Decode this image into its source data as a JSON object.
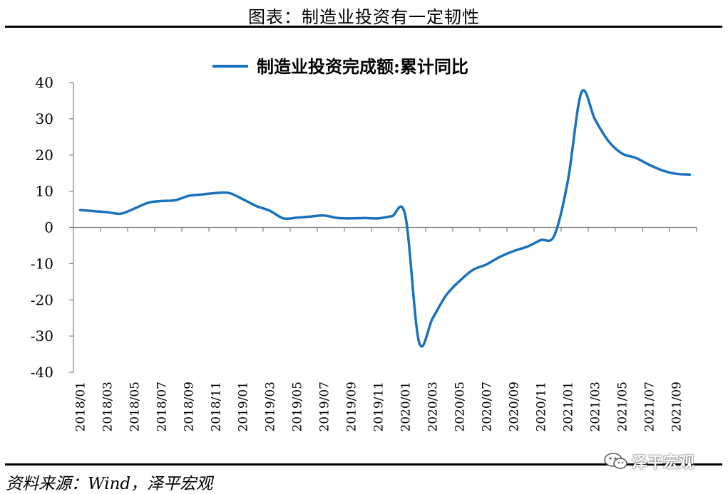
{
  "figure": {
    "title": "图表：制造业投资有一定韧性",
    "source": "资料来源：Wind，泽平宏观",
    "watermark": "泽平宏观",
    "watermark_icon": "wechat-icon"
  },
  "colors": {
    "series": "#1a72bd",
    "axis": "#7f7f7f",
    "text": "#000000"
  },
  "chart_data": {
    "type": "line",
    "title": "",
    "xlabel": "",
    "ylabel": "",
    "ylim": [
      -40,
      40
    ],
    "yticks": [
      40,
      30,
      20,
      10,
      0,
      -10,
      -20,
      -30,
      -40
    ],
    "grid": false,
    "legend": "top",
    "x": [
      "2018/01",
      "2018/02",
      "2018/03",
      "2018/04",
      "2018/05",
      "2018/06",
      "2018/07",
      "2018/08",
      "2018/09",
      "2018/10",
      "2018/11",
      "2018/12",
      "2019/01",
      "2019/02",
      "2019/03",
      "2019/04",
      "2019/05",
      "2019/06",
      "2019/07",
      "2019/08",
      "2019/09",
      "2019/10",
      "2019/11",
      "2019/12",
      "2020/01",
      "2020/02",
      "2020/03",
      "2020/04",
      "2020/05",
      "2020/06",
      "2020/07",
      "2020/08",
      "2020/09",
      "2020/10",
      "2020/11",
      "2020/12",
      "2021/01",
      "2021/02",
      "2021/03",
      "2021/04",
      "2021/05",
      "2021/06",
      "2021/07",
      "2021/08",
      "2021/09",
      "2021/10"
    ],
    "xtick_labels": [
      "2018/01",
      "2018/03",
      "2018/05",
      "2018/07",
      "2018/09",
      "2018/11",
      "2019/01",
      "2019/03",
      "2019/05",
      "2019/07",
      "2019/09",
      "2019/11",
      "2020/01",
      "2020/03",
      "2020/05",
      "2020/07",
      "2020/09",
      "2020/11",
      "2021/01",
      "2021/03",
      "2021/05",
      "2021/07",
      "2021/09"
    ],
    "series": [
      {
        "name": "制造业投资完成额:累计同比",
        "values": [
          4.8,
          4.5,
          4.2,
          3.8,
          5.2,
          6.8,
          7.3,
          7.5,
          8.7,
          9.1,
          9.5,
          9.5,
          7.8,
          5.9,
          4.6,
          2.5,
          2.7,
          3.0,
          3.3,
          2.6,
          2.5,
          2.6,
          2.5,
          3.1,
          3.2,
          -31.5,
          -25.2,
          -18.8,
          -14.8,
          -11.7,
          -10.2,
          -8.1,
          -6.5,
          -5.3,
          -3.5,
          -2.2,
          13.0,
          37.3,
          29.8,
          23.8,
          20.4,
          19.2,
          17.3,
          15.7,
          14.8,
          14.6
        ]
      }
    ]
  }
}
